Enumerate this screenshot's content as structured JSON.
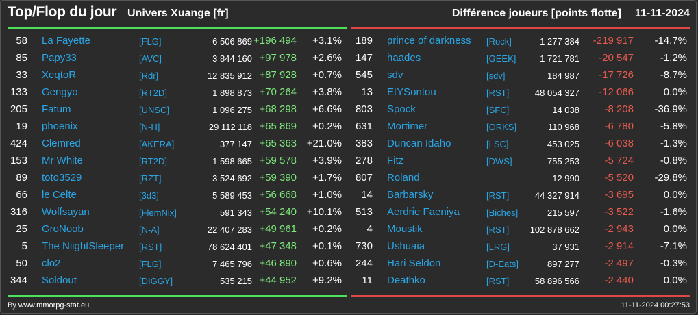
{
  "header": {
    "title": "Top/Flop du jour",
    "server": "Univers Xuange [fr]",
    "metric": "Différence joueurs [points flotte]",
    "date": "11-11-2024"
  },
  "colors": {
    "background": "#2b2b2b",
    "top_accent": "#4ee05a",
    "flop_accent": "#e04848",
    "gain_text": "#7de87b",
    "loss_text": "#e85a4f",
    "name_link": "#2aa6e6"
  },
  "top": [
    {
      "rank": "58",
      "name": "La Fayette",
      "tag": "[FLG]",
      "points": "6 506 869",
      "diff": "+196 494",
      "pct": "+3.1%"
    },
    {
      "rank": "85",
      "name": "Papy33",
      "tag": "[AVC]",
      "points": "3 844 160",
      "diff": "+97 978",
      "pct": "+2.6%"
    },
    {
      "rank": "33",
      "name": "XeqtoR",
      "tag": "[Rdr]",
      "points": "12 835 912",
      "diff": "+87 928",
      "pct": "+0.7%"
    },
    {
      "rank": "133",
      "name": "Gengyo",
      "tag": "[RT2D]",
      "points": "1 898 873",
      "diff": "+70 264",
      "pct": "+3.8%"
    },
    {
      "rank": "205",
      "name": "Fatum",
      "tag": "[UNSC]",
      "points": "1 096 275",
      "diff": "+68 298",
      "pct": "+6.6%"
    },
    {
      "rank": "19",
      "name": "phoenix",
      "tag": "[N-H]",
      "points": "29 112 118",
      "diff": "+65 869",
      "pct": "+0.2%"
    },
    {
      "rank": "424",
      "name": "Clemred",
      "tag": "[AKERA]",
      "points": "377 147",
      "diff": "+65 363",
      "pct": "+21.0%"
    },
    {
      "rank": "153",
      "name": "Mr White",
      "tag": "[RT2D]",
      "points": "1 598 665",
      "diff": "+59 578",
      "pct": "+3.9%"
    },
    {
      "rank": "89",
      "name": "toto3529",
      "tag": "[RZT]",
      "points": "3 524 692",
      "diff": "+59 390",
      "pct": "+1.7%"
    },
    {
      "rank": "66",
      "name": "le Celte",
      "tag": "[3d3]",
      "points": "5 589 453",
      "diff": "+56 668",
      "pct": "+1.0%"
    },
    {
      "rank": "316",
      "name": "Wolfsayan",
      "tag": "[FlemNix]",
      "points": "591 343",
      "diff": "+54 240",
      "pct": "+10.1%"
    },
    {
      "rank": "25",
      "name": "GroNoob",
      "tag": "[N-A]",
      "points": "22 407 283",
      "diff": "+49 961",
      "pct": "+0.2%"
    },
    {
      "rank": "5",
      "name": "The NiightSleeper",
      "tag": "[RST]",
      "points": "78 624 401",
      "diff": "+47 348",
      "pct": "+0.1%"
    },
    {
      "rank": "50",
      "name": "clo2",
      "tag": "[FLG]",
      "points": "7 465 796",
      "diff": "+46 890",
      "pct": "+0.6%"
    },
    {
      "rank": "344",
      "name": "Soldout",
      "tag": "[DIGGY]",
      "points": "535 215",
      "diff": "+44 952",
      "pct": "+9.2%"
    }
  ],
  "flop": [
    {
      "rank": "189",
      "name": "prince of darkness",
      "tag": "[Rock]",
      "points": "1 277 384",
      "diff": "-219 917",
      "pct": "-14.7%"
    },
    {
      "rank": "147",
      "name": "haades",
      "tag": "[GEEK]",
      "points": "1 721 781",
      "diff": "-20 547",
      "pct": "-1.2%"
    },
    {
      "rank": "545",
      "name": "sdv",
      "tag": "[sdv]",
      "points": "184 987",
      "diff": "-17 726",
      "pct": "-8.7%"
    },
    {
      "rank": "13",
      "name": "EtYSontou",
      "tag": "[RST]",
      "points": "48 054 327",
      "diff": "-12 066",
      "pct": "0.0%"
    },
    {
      "rank": "803",
      "name": "Spock",
      "tag": "[SFC]",
      "points": "14 038",
      "diff": "-8 208",
      "pct": "-36.9%"
    },
    {
      "rank": "631",
      "name": "Mortimer",
      "tag": "[ORKS]",
      "points": "110 968",
      "diff": "-6 780",
      "pct": "-5.8%"
    },
    {
      "rank": "383",
      "name": "Duncan Idaho",
      "tag": "[LSC]",
      "points": "453 025",
      "diff": "-6 038",
      "pct": "-1.3%"
    },
    {
      "rank": "278",
      "name": "Fitz",
      "tag": "[DWS]",
      "points": "755 253",
      "diff": "-5 724",
      "pct": "-0.8%"
    },
    {
      "rank": "807",
      "name": "Roland",
      "tag": "",
      "points": "12 990",
      "diff": "-5 520",
      "pct": "-29.8%"
    },
    {
      "rank": "14",
      "name": "Barbarsky",
      "tag": "[RST]",
      "points": "44 327 914",
      "diff": "-3 695",
      "pct": "0.0%"
    },
    {
      "rank": "513",
      "name": "Aerdrie Faeniya",
      "tag": "[Biches]",
      "points": "215 597",
      "diff": "-3 522",
      "pct": "-1.6%"
    },
    {
      "rank": "4",
      "name": "Moustik",
      "tag": "[RST]",
      "points": "102 878 662",
      "diff": "-2 943",
      "pct": "0.0%"
    },
    {
      "rank": "730",
      "name": "Ushuaia",
      "tag": "[LRG]",
      "points": "37 931",
      "diff": "-2 914",
      "pct": "-7.1%"
    },
    {
      "rank": "244",
      "name": "Hari Seldon",
      "tag": "[D-Eats]",
      "points": "897 277",
      "diff": "-2 497",
      "pct": "-0.3%"
    },
    {
      "rank": "11",
      "name": "Deathko",
      "tag": "[RST]",
      "points": "58 896 566",
      "diff": "-2 440",
      "pct": "0.0%"
    }
  ],
  "footer": {
    "credit": "By www.mmorpg-stat.eu",
    "timestamp": "11-11-2024 00:27:53"
  }
}
